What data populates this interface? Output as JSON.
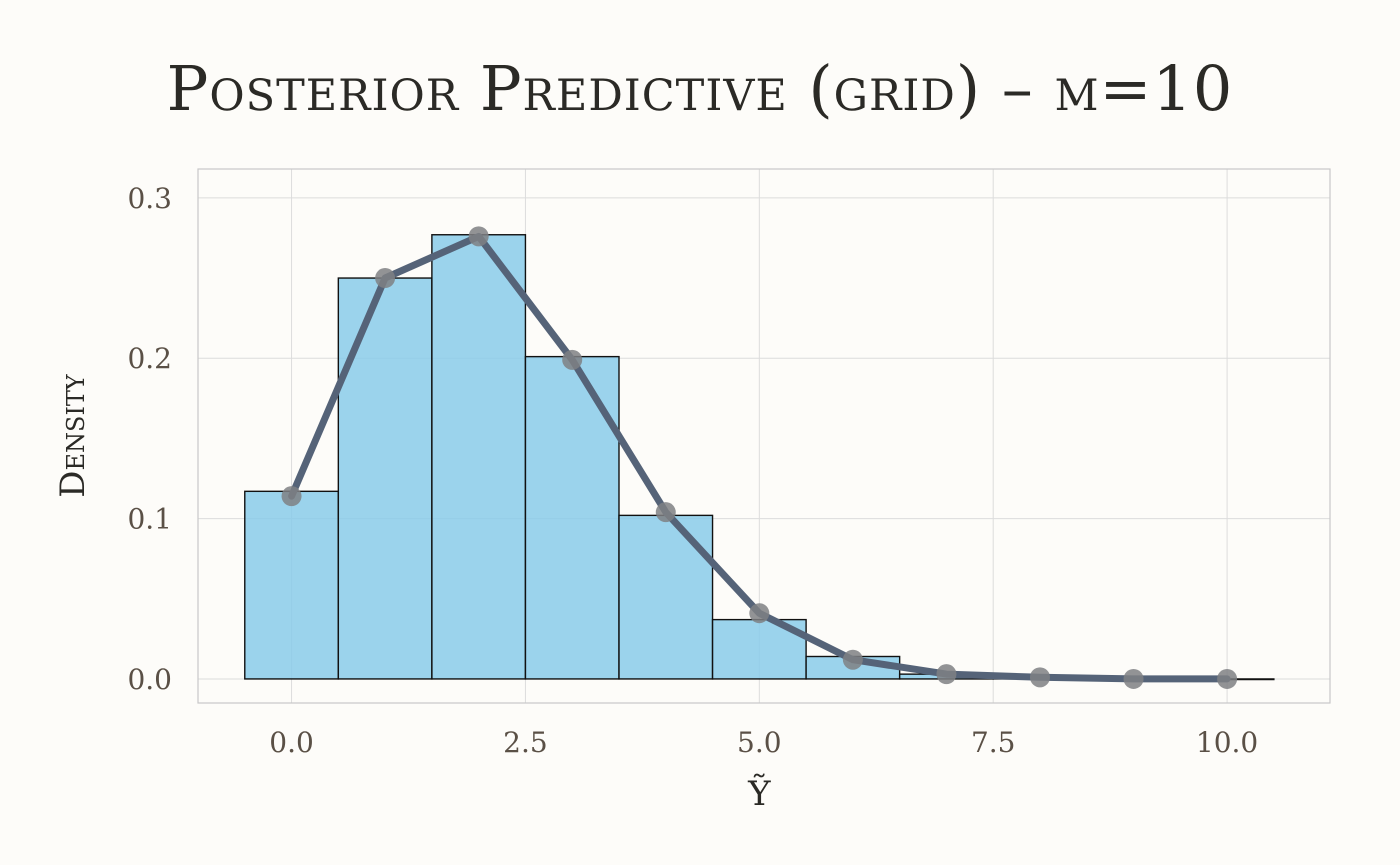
{
  "chart_data": {
    "type": "bar",
    "title": "Posterior Predictive (grid) – m=10",
    "xlabel": "Ỹ",
    "ylabel": "Density",
    "xlim": [
      -1.0,
      11.1
    ],
    "ylim": [
      -0.015,
      0.318
    ],
    "xticks": [
      0.0,
      2.5,
      5.0,
      7.5,
      10.0
    ],
    "xtick_labels": [
      "0.0",
      "2.5",
      "5.0",
      "7.5",
      "10.0"
    ],
    "yticks": [
      0.0,
      0.1,
      0.2,
      0.3
    ],
    "ytick_labels": [
      "0.0",
      "0.1",
      "0.2",
      "0.3"
    ],
    "grid": true,
    "legend": "none",
    "histogram": {
      "name": "",
      "bin_width": 1,
      "x": [
        0,
        1,
        2,
        3,
        4,
        5,
        6,
        7,
        8,
        9,
        10
      ],
      "values": [
        0.117,
        0.25,
        0.277,
        0.201,
        0.102,
        0.037,
        0.014,
        0.003,
        0.0005,
        0.0,
        0.0
      ],
      "color": "#89cbea",
      "edge_color": "#111111"
    },
    "line": {
      "name": "",
      "x": [
        0,
        1,
        2,
        3,
        4,
        5,
        6,
        7,
        8,
        9,
        10
      ],
      "values": [
        0.114,
        0.25,
        0.276,
        0.199,
        0.104,
        0.041,
        0.012,
        0.003,
        0.001,
        0.0,
        0.0
      ],
      "line_color": "#556378",
      "marker_color": "#7f8084"
    },
    "colors": {
      "background": "#fdfcf9",
      "plot_border": "#c8c8c8",
      "grid": "#dcdcdc",
      "title": "#2b2a26",
      "ticks": "#5a5046"
    }
  }
}
